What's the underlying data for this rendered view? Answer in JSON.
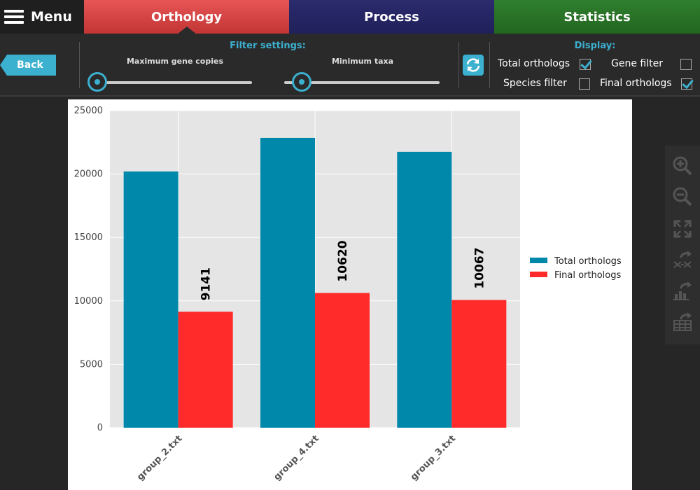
{
  "menu": {
    "label": "Menu"
  },
  "tabs": [
    {
      "label": "Orthology",
      "active": true
    },
    {
      "label": "Process"
    },
    {
      "label": "Statistics"
    }
  ],
  "toolbar": {
    "back_label": "Back",
    "filter_title": "Filter settings:",
    "slider1_label": "Maximum gene copies",
    "slider2_label": "Minimum taxa",
    "display_title": "Display:",
    "options": [
      {
        "label": "Total orthologs",
        "checked": true
      },
      {
        "label": "Gene filter",
        "checked": false
      },
      {
        "label": "Species filter",
        "checked": false
      },
      {
        "label": "Final orthologs",
        "checked": true
      }
    ]
  },
  "icons": {
    "menu": "hamburger-icon",
    "refresh": "refresh-icon",
    "tools": [
      "zoom-in-icon",
      "zoom-out-icon",
      "fit-screen-icon",
      "export-graph-icon",
      "export-chart-icon",
      "export-table-icon"
    ]
  },
  "colors": {
    "accent": "#3cb0cf",
    "total": "#0088aa",
    "final": "#ff2a2a"
  },
  "chart_data": {
    "type": "bar",
    "categories": [
      "group_2.txt",
      "group_4.txt",
      "group_3.txt"
    ],
    "series": [
      {
        "name": "Total orthologs",
        "values": [
          20200,
          22850,
          21750
        ],
        "color": "#0088aa"
      },
      {
        "name": "Final orthologs",
        "values": [
          9141,
          10620,
          10067
        ],
        "color": "#ff2a2a",
        "labels": [
          "9141",
          "10620",
          "10067"
        ]
      }
    ],
    "ylim": [
      0,
      25000
    ],
    "yticks": [
      "0",
      "5000",
      "10000",
      "15000",
      "20000",
      "25000"
    ],
    "grid": true,
    "legend_position": "right"
  }
}
